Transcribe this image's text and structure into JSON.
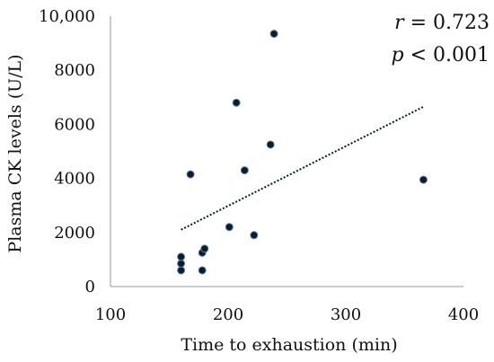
{
  "chart_data": {
    "type": "scatter",
    "title": "",
    "xlabel": "Time to exhaustion (min)",
    "ylabel": "Plasma CK levels (U/L)",
    "xlim": [
      100,
      400
    ],
    "ylim": [
      0,
      10000
    ],
    "xticks": [
      "100",
      "200",
      "300",
      "400"
    ],
    "yticks": [
      "0",
      "2000",
      "4000",
      "6000",
      "8000",
      "10,000"
    ],
    "grid": false,
    "marker_color": "#0d1b2a",
    "trendline_color": "#0d1b2a",
    "points": [
      {
        "x": 160,
        "y": 600
      },
      {
        "x": 160,
        "y": 850
      },
      {
        "x": 160,
        "y": 1100
      },
      {
        "x": 168,
        "y": 4150
      },
      {
        "x": 178,
        "y": 600
      },
      {
        "x": 178,
        "y": 1250
      },
      {
        "x": 180,
        "y": 1400
      },
      {
        "x": 201,
        "y": 2200
      },
      {
        "x": 207,
        "y": 6800
      },
      {
        "x": 214,
        "y": 4300
      },
      {
        "x": 222,
        "y": 1900
      },
      {
        "x": 236,
        "y": 5250
      },
      {
        "x": 239,
        "y": 9350
      },
      {
        "x": 366,
        "y": 3950
      }
    ],
    "trendline": {
      "x": [
        160,
        366
      ],
      "y": [
        2100,
        6650
      ]
    },
    "stats": {
      "r_symbol": "r",
      "r_text": " = 0.723",
      "p_symbol": "p",
      "p_text": " < 0.001"
    }
  }
}
